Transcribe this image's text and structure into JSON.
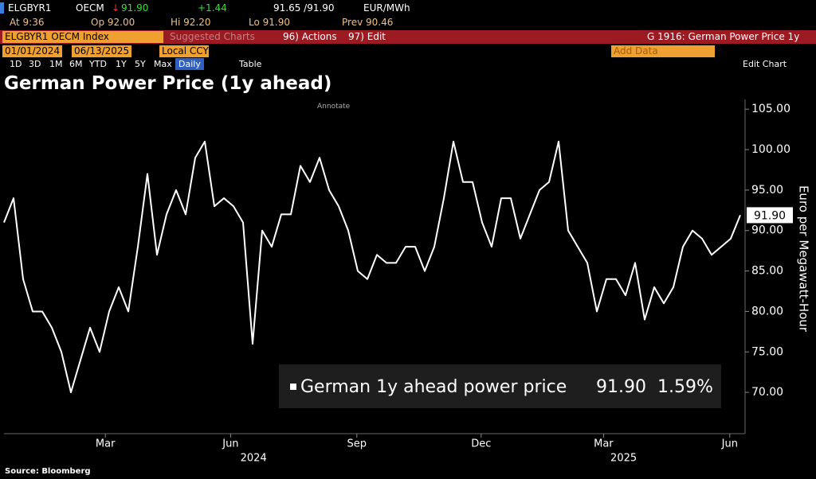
{
  "header": {
    "ticker": "ELGBYR1",
    "source": "OECM",
    "last": "91.90",
    "change": "+1.44",
    "bid_ask": "91.65 /91.90",
    "unit": "EUR/MWh",
    "at": "At 9:36",
    "open": "Op 92.00",
    "high": "Hi 92.20",
    "low": "Lo 91.90",
    "prev": "Prev 90.46"
  },
  "toolbar": {
    "security": "ELGBYR1 OECM Index",
    "suggested": "Suggested Charts",
    "actions": "96) Actions",
    "edit": "97) Edit",
    "chart_name": "G 1916: German Power Price 1y",
    "start_date": "01/01/2024",
    "end_date": "06/13/2025",
    "currency": "Local CCY",
    "add_data": "Add Data",
    "edit_chart": "Edit Chart",
    "periods": [
      "1D",
      "3D",
      "1M",
      "6M",
      "YTD",
      "1Y",
      "5Y",
      "Max"
    ],
    "frequency": "Daily",
    "table": "Table",
    "annotate": "Annotate"
  },
  "source": "Source: Bloomberg",
  "chart_data": {
    "type": "line",
    "title": "German Power Price (1y ahead)",
    "y_label": "Euro per Megawatt-Hour",
    "series": [
      {
        "name": "German 1y ahead power price",
        "color": "#ffffff",
        "last_price": "91.90",
        "change": "1.59%",
        "values": [
          91,
          94,
          84,
          80,
          80,
          78,
          75,
          70,
          74,
          78,
          75,
          80,
          83,
          80,
          88,
          97,
          87,
          92,
          95,
          92,
          99,
          101,
          93,
          94,
          93,
          91,
          76,
          90,
          88,
          92,
          92,
          98,
          96,
          99,
          95,
          93,
          90,
          85,
          84,
          87,
          86,
          86,
          88,
          88,
          85,
          88,
          94,
          101,
          96,
          96,
          91,
          88,
          94,
          94,
          89,
          92,
          95,
          96,
          101,
          90,
          88,
          86,
          80,
          84,
          84,
          82,
          86,
          79,
          83,
          81,
          83,
          88,
          90,
          89,
          87,
          88,
          89,
          91.9
        ]
      }
    ],
    "last_label": "91.90",
    "xlim": [
      0,
      77.5
    ],
    "xticks": [
      {
        "value": 10.6,
        "label": "Mar"
      },
      {
        "value": 23.7,
        "label": "Jun"
      },
      {
        "value": 36.9,
        "label": "Sep"
      },
      {
        "value": 49.9,
        "label": "Dec"
      },
      {
        "value": 62.7,
        "label": "Mar"
      },
      {
        "value": 75.9,
        "label": "Jun"
      }
    ],
    "year_labels": [
      {
        "value": 26.1,
        "label": "2024"
      },
      {
        "value": 64.8,
        "label": "2025"
      }
    ],
    "ylim": [
      64.9,
      106.2
    ],
    "yticks": [
      {
        "value": 70,
        "label": "70.00"
      },
      {
        "value": 75,
        "label": "75.00"
      },
      {
        "value": 80,
        "label": "80.00"
      },
      {
        "value": 85,
        "label": "85.00"
      },
      {
        "value": 90,
        "label": "90.00"
      },
      {
        "value": 95,
        "label": "95.00"
      },
      {
        "value": 100,
        "label": "100.00"
      },
      {
        "value": 105,
        "label": "105.00"
      }
    ],
    "grid": false
  }
}
